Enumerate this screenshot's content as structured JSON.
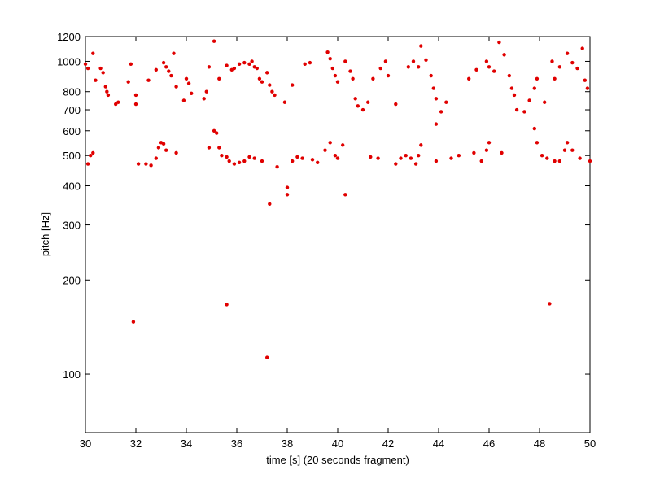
{
  "chart_data": {
    "type": "scatter",
    "x_label": "time [s] (20 seconds fragment)",
    "y_label": "pitch [Hz]",
    "xlim": [
      30,
      50
    ],
    "xticks": [
      30,
      32,
      34,
      36,
      38,
      40,
      42,
      44,
      46,
      48,
      50
    ],
    "ylim": [
      65,
      1200
    ],
    "yticks": [
      100,
      200,
      300,
      400,
      500,
      600,
      700,
      800,
      1000,
      1200
    ],
    "y_scale": "log",
    "color": "#e00000",
    "x": [
      30.0,
      30.1,
      30.3,
      30.4,
      30.6,
      30.7,
      30.8,
      30.85,
      30.9,
      31.2,
      31.3,
      31.7,
      31.8,
      32.0,
      32.0,
      32.5,
      32.8,
      33.1,
      33.2,
      33.3,
      33.4,
      33.5,
      33.6,
      33.9,
      34.0,
      34.1,
      34.2,
      34.7,
      34.8,
      34.9,
      35.1,
      35.3,
      35.6,
      35.8,
      35.9,
      36.1,
      36.3,
      36.5,
      36.6,
      36.7,
      36.8,
      36.9,
      37.0,
      37.2,
      37.3,
      37.4,
      37.5,
      37.9,
      38.2,
      38.7,
      38.9,
      39.6,
      39.7,
      39.8,
      39.9,
      40.0,
      40.3,
      40.5,
      40.6,
      40.7,
      40.8,
      41.0,
      41.2,
      41.4,
      41.7,
      41.9,
      42.0,
      42.3,
      42.8,
      43.0,
      43.2,
      43.3,
      43.5,
      43.7,
      43.8,
      43.9,
      43.9,
      44.1,
      44.3,
      45.2,
      45.5,
      45.9,
      46.0,
      46.2,
      46.4,
      46.6,
      46.8,
      46.9,
      47.0,
      47.1,
      47.4,
      47.6,
      47.8,
      47.9,
      48.2,
      48.5,
      48.6,
      48.8,
      49.1,
      49.3,
      49.5,
      49.7,
      49.8,
      49.9,
      30.1,
      30.2,
      30.3,
      32.1,
      32.4,
      32.6,
      32.8,
      32.9,
      33.0,
      33.1,
      33.2,
      33.6,
      34.9,
      35.1,
      35.2,
      35.3,
      35.4,
      35.6,
      35.7,
      35.9,
      36.1,
      36.3,
      36.5,
      36.7,
      37.0,
      37.6,
      38.2,
      38.4,
      38.6,
      39.0,
      39.2,
      39.5,
      39.7,
      39.9,
      40.0,
      40.2,
      41.3,
      41.6,
      42.3,
      42.5,
      42.7,
      42.9,
      43.1,
      43.2,
      43.3,
      43.9,
      44.5,
      44.8,
      45.4,
      45.7,
      45.9,
      46.0,
      46.5,
      47.8,
      47.9,
      48.1,
      48.3,
      48.6,
      48.8,
      49.0,
      49.1,
      49.3,
      49.6,
      50.0,
      37.3,
      38.0,
      38.0,
      40.3,
      31.9,
      35.6,
      37.2,
      48.4
    ],
    "values": [
      980,
      950,
      1060,
      870,
      950,
      920,
      830,
      800,
      780,
      730,
      740,
      860,
      980,
      780,
      730,
      870,
      940,
      990,
      960,
      930,
      900,
      1060,
      830,
      750,
      880,
      850,
      790,
      760,
      800,
      960,
      1160,
      880,
      970,
      940,
      950,
      980,
      990,
      980,
      1000,
      960,
      950,
      880,
      860,
      920,
      840,
      800,
      780,
      740,
      840,
      980,
      990,
      1070,
      1020,
      950,
      900,
      860,
      1000,
      930,
      880,
      760,
      720,
      700,
      740,
      880,
      950,
      1000,
      900,
      730,
      960,
      1000,
      960,
      1120,
      1010,
      900,
      820,
      760,
      630,
      690,
      740,
      880,
      940,
      1000,
      960,
      930,
      1150,
      1050,
      900,
      820,
      780,
      700,
      690,
      750,
      820,
      880,
      740,
      1000,
      880,
      960,
      1060,
      990,
      950,
      1100,
      870,
      820,
      470,
      500,
      510,
      470,
      470,
      465,
      490,
      530,
      550,
      545,
      520,
      510,
      530,
      600,
      590,
      530,
      500,
      495,
      480,
      470,
      475,
      480,
      495,
      490,
      480,
      460,
      480,
      495,
      490,
      485,
      475,
      520,
      550,
      500,
      490,
      540,
      495,
      490,
      470,
      490,
      500,
      490,
      470,
      500,
      540,
      480,
      490,
      500,
      510,
      480,
      520,
      550,
      510,
      610,
      550,
      500,
      490,
      480,
      480,
      520,
      550,
      520,
      490,
      480,
      350,
      375,
      395,
      375,
      147,
      167,
      113,
      168
    ]
  }
}
